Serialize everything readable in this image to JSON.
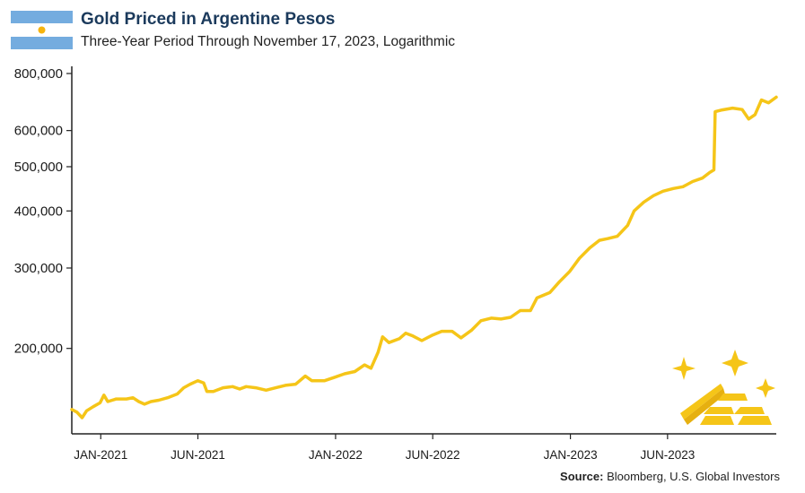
{
  "title": "Gold Priced in Argentine Pesos",
  "subtitle": "Three-Year Period Through November 17, 2023, Logarithmic",
  "source_label": "Source:",
  "source_text": "Bloomberg, U.S. Global Investors",
  "colors": {
    "line": "#F5C518",
    "title": "#1b3a5c",
    "flag_blue": "#74ACDF",
    "sun": "#F6B40E"
  },
  "icons": {
    "flag": "argentina-flag-icon",
    "decor": "gold-bars-sparkle-icon"
  },
  "chart_data": {
    "type": "line",
    "title": "Gold Priced in Argentine Pesos",
    "subtitle": "Three-Year Period Through November 17, 2023, Logarithmic",
    "y_scale": "log",
    "ylim": [
      130000,
      800000
    ],
    "xlim": [
      "2020-11-17",
      "2023-11-17"
    ],
    "y_ticks": [
      {
        "value": 200000,
        "label": "200,000"
      },
      {
        "value": 300000,
        "label": "300,000"
      },
      {
        "value": 400000,
        "label": "400,000"
      },
      {
        "value": 500000,
        "label": "500,000"
      },
      {
        "value": 600000,
        "label": "600,000"
      },
      {
        "value": 800000,
        "label": "800,000"
      }
    ],
    "x_ticks": [
      {
        "date": "2021-01-01",
        "label": "JAN-2021"
      },
      {
        "date": "2021-06-01",
        "label": "JUN-2021"
      },
      {
        "date": "2022-01-01",
        "label": "JAN-2022"
      },
      {
        "date": "2022-06-01",
        "label": "JUN-2022"
      },
      {
        "date": "2023-01-01",
        "label": "JAN-2023"
      },
      {
        "date": "2023-06-01",
        "label": "JUN-2023"
      }
    ],
    "grid": false,
    "series": [
      {
        "points": [
          [
            "2020-11-17",
            147000
          ],
          [
            "2020-11-25",
            145000
          ],
          [
            "2020-12-03",
            141000
          ],
          [
            "2020-12-10",
            146000
          ],
          [
            "2020-12-20",
            149000
          ],
          [
            "2020-12-31",
            152000
          ],
          [
            "2021-01-06",
            158000
          ],
          [
            "2021-01-12",
            153000
          ],
          [
            "2021-01-25",
            155000
          ],
          [
            "2021-02-10",
            155000
          ],
          [
            "2021-02-20",
            156000
          ],
          [
            "2021-03-01",
            153000
          ],
          [
            "2021-03-10",
            151000
          ],
          [
            "2021-03-20",
            153000
          ],
          [
            "2021-04-01",
            154000
          ],
          [
            "2021-04-15",
            156000
          ],
          [
            "2021-04-30",
            159000
          ],
          [
            "2021-05-10",
            164000
          ],
          [
            "2021-05-20",
            167000
          ],
          [
            "2021-06-01",
            170000
          ],
          [
            "2021-06-10",
            168000
          ],
          [
            "2021-06-15",
            161000
          ],
          [
            "2021-06-25",
            161000
          ],
          [
            "2021-07-10",
            164000
          ],
          [
            "2021-07-25",
            165000
          ],
          [
            "2021-08-05",
            163000
          ],
          [
            "2021-08-15",
            165000
          ],
          [
            "2021-08-30",
            164000
          ],
          [
            "2021-09-15",
            162000
          ],
          [
            "2021-09-30",
            164000
          ],
          [
            "2021-10-15",
            166000
          ],
          [
            "2021-10-31",
            167000
          ],
          [
            "2021-11-15",
            174000
          ],
          [
            "2021-11-25",
            170000
          ],
          [
            "2021-12-15",
            170000
          ],
          [
            "2021-12-31",
            173000
          ],
          [
            "2022-01-15",
            176000
          ],
          [
            "2022-01-31",
            178000
          ],
          [
            "2022-02-15",
            184000
          ],
          [
            "2022-02-25",
            181000
          ],
          [
            "2022-03-08",
            196000
          ],
          [
            "2022-03-15",
            212000
          ],
          [
            "2022-03-25",
            206000
          ],
          [
            "2022-04-10",
            210000
          ],
          [
            "2022-04-20",
            216000
          ],
          [
            "2022-05-01",
            213000
          ],
          [
            "2022-05-15",
            208000
          ],
          [
            "2022-06-01",
            214000
          ],
          [
            "2022-06-15",
            218000
          ],
          [
            "2022-07-01",
            218000
          ],
          [
            "2022-07-15",
            211000
          ],
          [
            "2022-07-31",
            219000
          ],
          [
            "2022-08-15",
            230000
          ],
          [
            "2022-08-31",
            233000
          ],
          [
            "2022-09-15",
            232000
          ],
          [
            "2022-09-30",
            234000
          ],
          [
            "2022-10-15",
            242000
          ],
          [
            "2022-10-31",
            242000
          ],
          [
            "2022-11-10",
            258000
          ],
          [
            "2022-11-30",
            265000
          ],
          [
            "2022-12-15",
            280000
          ],
          [
            "2022-12-31",
            295000
          ],
          [
            "2023-01-15",
            315000
          ],
          [
            "2023-01-31",
            332000
          ],
          [
            "2023-02-15",
            345000
          ],
          [
            "2023-02-28",
            348000
          ],
          [
            "2023-03-15",
            352000
          ],
          [
            "2023-03-31",
            372000
          ],
          [
            "2023-04-10",
            400000
          ],
          [
            "2023-04-25",
            418000
          ],
          [
            "2023-05-10",
            432000
          ],
          [
            "2023-05-25",
            442000
          ],
          [
            "2023-06-10",
            448000
          ],
          [
            "2023-06-25",
            452000
          ],
          [
            "2023-07-10",
            464000
          ],
          [
            "2023-07-25",
            472000
          ],
          [
            "2023-08-05",
            485000
          ],
          [
            "2023-08-12",
            492000
          ],
          [
            "2023-08-14",
            660000
          ],
          [
            "2023-08-25",
            666000
          ],
          [
            "2023-09-10",
            672000
          ],
          [
            "2023-09-25",
            667000
          ],
          [
            "2023-10-05",
            636000
          ],
          [
            "2023-10-15",
            650000
          ],
          [
            "2023-10-25",
            700000
          ],
          [
            "2023-11-05",
            690000
          ],
          [
            "2023-11-17",
            710000
          ]
        ]
      }
    ]
  }
}
